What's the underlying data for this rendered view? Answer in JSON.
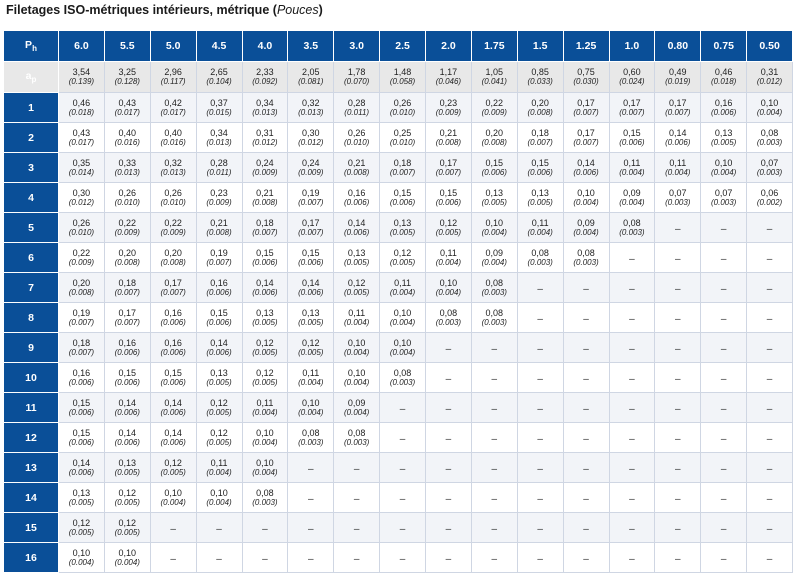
{
  "title": {
    "main": "Filetages ISO-métriques intérieurs, métrique",
    "units": "Pouces"
  },
  "header": {
    "ph_symbol": "P",
    "ph_sub": "h",
    "pitches": [
      "6.0",
      "5.5",
      "5.0",
      "4.5",
      "4.0",
      "3.5",
      "3.0",
      "2.5",
      "2.0",
      "1.75",
      "1.5",
      "1.25",
      "1.0",
      "0.80",
      "0.75",
      "0.50"
    ]
  },
  "ap_row": {
    "symbol": "a",
    "sub": "p",
    "values": [
      [
        "3,54",
        "(0.139)"
      ],
      [
        "3,25",
        "(0.128)"
      ],
      [
        "2,96",
        "(0.117)"
      ],
      [
        "2,65",
        "(0.104)"
      ],
      [
        "2,33",
        "(0.092)"
      ],
      [
        "2,05",
        "(0.081)"
      ],
      [
        "1,78",
        "(0.070)"
      ],
      [
        "1,48",
        "(0.058)"
      ],
      [
        "1,17",
        "(0.046)"
      ],
      [
        "1,05",
        "(0.041)"
      ],
      [
        "0,85",
        "(0.033)"
      ],
      [
        "0,75",
        "(0.030)"
      ],
      [
        "0,60",
        "(0.024)"
      ],
      [
        "0,49",
        "(0.019)"
      ],
      [
        "0,46",
        "(0.018)"
      ],
      [
        "0,31",
        "(0.012)"
      ]
    ]
  },
  "rows": [
    {
      "label": "1",
      "cells": [
        [
          "0,46",
          "(0.018)"
        ],
        [
          "0,43",
          "(0.017)"
        ],
        [
          "0,42",
          "(0.017)"
        ],
        [
          "0,37",
          "(0.015)"
        ],
        [
          "0,34",
          "(0.013)"
        ],
        [
          "0,32",
          "(0.013)"
        ],
        [
          "0,28",
          "(0.011)"
        ],
        [
          "0,26",
          "(0.010)"
        ],
        [
          "0,23",
          "(0.009)"
        ],
        [
          "0,22",
          "(0.009)"
        ],
        [
          "0,20",
          "(0.008)"
        ],
        [
          "0,17",
          "(0.007)"
        ],
        [
          "0,17",
          "(0.007)"
        ],
        [
          "0,17",
          "(0.007)"
        ],
        [
          "0,16",
          "(0.006)"
        ],
        [
          "0,10",
          "(0.004)"
        ]
      ]
    },
    {
      "label": "2",
      "cells": [
        [
          "0,43",
          "(0.017)"
        ],
        [
          "0,40",
          "(0.016)"
        ],
        [
          "0,40",
          "(0.016)"
        ],
        [
          "0,34",
          "(0.013)"
        ],
        [
          "0,31",
          "(0.012)"
        ],
        [
          "0,30",
          "(0.012)"
        ],
        [
          "0,26",
          "(0.010)"
        ],
        [
          "0,25",
          "(0.010)"
        ],
        [
          "0,21",
          "(0.008)"
        ],
        [
          "0,20",
          "(0.008)"
        ],
        [
          "0,18",
          "(0.007)"
        ],
        [
          "0,17",
          "(0.007)"
        ],
        [
          "0,15",
          "(0.006)"
        ],
        [
          "0,14",
          "(0.006)"
        ],
        [
          "0,13",
          "(0.005)"
        ],
        [
          "0,08",
          "(0.003)"
        ]
      ]
    },
    {
      "label": "3",
      "cells": [
        [
          "0,35",
          "(0.014)"
        ],
        [
          "0,33",
          "(0.013)"
        ],
        [
          "0,32",
          "(0.013)"
        ],
        [
          "0,28",
          "(0.011)"
        ],
        [
          "0,24",
          "(0.009)"
        ],
        [
          "0,24",
          "(0.009)"
        ],
        [
          "0,21",
          "(0.008)"
        ],
        [
          "0,18",
          "(0.007)"
        ],
        [
          "0,17",
          "(0.007)"
        ],
        [
          "0,15",
          "(0.006)"
        ],
        [
          "0,15",
          "(0.006)"
        ],
        [
          "0,14",
          "(0.006)"
        ],
        [
          "0,11",
          "(0.004)"
        ],
        [
          "0,11",
          "(0.004)"
        ],
        [
          "0,10",
          "(0.004)"
        ],
        [
          "0,07",
          "(0.003)"
        ]
      ]
    },
    {
      "label": "4",
      "cells": [
        [
          "0,30",
          "(0.012)"
        ],
        [
          "0,26",
          "(0.010)"
        ],
        [
          "0,26",
          "(0.010)"
        ],
        [
          "0,23",
          "(0.009)"
        ],
        [
          "0,21",
          "(0.008)"
        ],
        [
          "0,19",
          "(0.007)"
        ],
        [
          "0,16",
          "(0.006)"
        ],
        [
          "0,15",
          "(0.006)"
        ],
        [
          "0,15",
          "(0.006)"
        ],
        [
          "0,13",
          "(0.005)"
        ],
        [
          "0,13",
          "(0.005)"
        ],
        [
          "0,10",
          "(0.004)"
        ],
        [
          "0,09",
          "(0.004)"
        ],
        [
          "0,07",
          "(0.003)"
        ],
        [
          "0,07",
          "(0.003)"
        ],
        [
          "0,06",
          "(0.002)"
        ]
      ]
    },
    {
      "label": "5",
      "cells": [
        [
          "0,26",
          "(0.010)"
        ],
        [
          "0,22",
          "(0.009)"
        ],
        [
          "0,22",
          "(0.009)"
        ],
        [
          "0,21",
          "(0.008)"
        ],
        [
          "0,18",
          "(0.007)"
        ],
        [
          "0,17",
          "(0.007)"
        ],
        [
          "0,14",
          "(0.006)"
        ],
        [
          "0,13",
          "(0.005)"
        ],
        [
          "0,12",
          "(0.005)"
        ],
        [
          "0,10",
          "(0.004)"
        ],
        [
          "0,11",
          "(0.004)"
        ],
        [
          "0,09",
          "(0.004)"
        ],
        [
          "0,08",
          "(0.003)"
        ],
        "–",
        "–",
        "–"
      ]
    },
    {
      "label": "6",
      "cells": [
        [
          "0,22",
          "(0.009)"
        ],
        [
          "0,20",
          "(0.008)"
        ],
        [
          "0,20",
          "(0.008)"
        ],
        [
          "0,19",
          "(0.007)"
        ],
        [
          "0,15",
          "(0.006)"
        ],
        [
          "0,15",
          "(0.006)"
        ],
        [
          "0,13",
          "(0.005)"
        ],
        [
          "0,12",
          "(0.005)"
        ],
        [
          "0,11",
          "(0.004)"
        ],
        [
          "0,09",
          "(0.004)"
        ],
        [
          "0,08",
          "(0.003)"
        ],
        [
          "0,08",
          "(0.003)"
        ],
        "–",
        "–",
        "–",
        "–"
      ]
    },
    {
      "label": "7",
      "cells": [
        [
          "0,20",
          "(0.008)"
        ],
        [
          "0,18",
          "(0.007)"
        ],
        [
          "0,17",
          "(0.007)"
        ],
        [
          "0,16",
          "(0.006)"
        ],
        [
          "0,14",
          "(0.006)"
        ],
        [
          "0,14",
          "(0.006)"
        ],
        [
          "0,12",
          "(0.005)"
        ],
        [
          "0,11",
          "(0.004)"
        ],
        [
          "0,10",
          "(0.004)"
        ],
        [
          "0,08",
          "(0.003)"
        ],
        "–",
        "–",
        "–",
        "–",
        "–",
        "–"
      ]
    },
    {
      "label": "8",
      "cells": [
        [
          "0,19",
          "(0.007)"
        ],
        [
          "0,17",
          "(0.007)"
        ],
        [
          "0,16",
          "(0.006)"
        ],
        [
          "0,15",
          "(0.006)"
        ],
        [
          "0,13",
          "(0.005)"
        ],
        [
          "0,13",
          "(0.005)"
        ],
        [
          "0,11",
          "(0.004)"
        ],
        [
          "0,10",
          "(0.004)"
        ],
        [
          "0,08",
          "(0.003)"
        ],
        [
          "0,08",
          "(0.003)"
        ],
        "–",
        "–",
        "–",
        "–",
        "–",
        "–"
      ]
    },
    {
      "label": "9",
      "cells": [
        [
          "0,18",
          "(0.007)"
        ],
        [
          "0,16",
          "(0.006)"
        ],
        [
          "0,16",
          "(0.006)"
        ],
        [
          "0,14",
          "(0.006)"
        ],
        [
          "0,12",
          "(0.005)"
        ],
        [
          "0,12",
          "(0.005)"
        ],
        [
          "0,10",
          "(0.004)"
        ],
        [
          "0,10",
          "(0.004)"
        ],
        "–",
        "–",
        "–",
        "–",
        "–",
        "–",
        "–",
        "–"
      ]
    },
    {
      "label": "10",
      "cells": [
        [
          "0,16",
          "(0.006)"
        ],
        [
          "0,15",
          "(0.006)"
        ],
        [
          "0,15",
          "(0.006)"
        ],
        [
          "0,13",
          "(0.005)"
        ],
        [
          "0,12",
          "(0.005)"
        ],
        [
          "0,11",
          "(0.004)"
        ],
        [
          "0,10",
          "(0.004)"
        ],
        [
          "0,08",
          "(0.003)"
        ],
        "–",
        "–",
        "–",
        "–",
        "–",
        "–",
        "–",
        "–"
      ]
    },
    {
      "label": "11",
      "cells": [
        [
          "0,15",
          "(0.006)"
        ],
        [
          "0,14",
          "(0.006)"
        ],
        [
          "0,14",
          "(0.006)"
        ],
        [
          "0,12",
          "(0.005)"
        ],
        [
          "0,11",
          "(0.004)"
        ],
        [
          "0,10",
          "(0.004)"
        ],
        [
          "0,09",
          "(0.004)"
        ],
        "–",
        "–",
        "–",
        "–",
        "–",
        "–",
        "–",
        "–",
        "–"
      ]
    },
    {
      "label": "12",
      "cells": [
        [
          "0,15",
          "(0.006)"
        ],
        [
          "0,14",
          "(0.006)"
        ],
        [
          "0,14",
          "(0.006)"
        ],
        [
          "0,12",
          "(0.005)"
        ],
        [
          "0,10",
          "(0.004)"
        ],
        [
          "0,08",
          "(0.003)"
        ],
        [
          "0,08",
          "(0.003)"
        ],
        "–",
        "–",
        "–",
        "–",
        "–",
        "–",
        "–",
        "–",
        "–"
      ]
    },
    {
      "label": "13",
      "cells": [
        [
          "0,14",
          "(0.006)"
        ],
        [
          "0,13",
          "(0.005)"
        ],
        [
          "0,12",
          "(0.005)"
        ],
        [
          "0,11",
          "(0.004)"
        ],
        [
          "0,10",
          "(0.004)"
        ],
        "–",
        "–",
        "–",
        "–",
        "–",
        "–",
        "–",
        "–",
        "–",
        "–",
        "–"
      ]
    },
    {
      "label": "14",
      "cells": [
        [
          "0,13",
          "(0.005)"
        ],
        [
          "0,12",
          "(0.005)"
        ],
        [
          "0,10",
          "(0.004)"
        ],
        [
          "0,10",
          "(0.004)"
        ],
        [
          "0,08",
          "(0.003)"
        ],
        "–",
        "–",
        "–",
        "–",
        "–",
        "–",
        "–",
        "–",
        "–",
        "–",
        "–"
      ]
    },
    {
      "label": "15",
      "cells": [
        [
          "0,12",
          "(0.005)"
        ],
        [
          "0,12",
          "(0.005)"
        ],
        "–",
        "–",
        "–",
        "–",
        "–",
        "–",
        "–",
        "–",
        "–",
        "–",
        "–",
        "–",
        "–",
        "–"
      ]
    },
    {
      "label": "16",
      "cells": [
        [
          "0,10",
          "(0.004)"
        ],
        [
          "0,10",
          "(0.004)"
        ],
        "–",
        "–",
        "–",
        "–",
        "–",
        "–",
        "–",
        "–",
        "–",
        "–",
        "–",
        "–",
        "–",
        "–"
      ]
    }
  ]
}
